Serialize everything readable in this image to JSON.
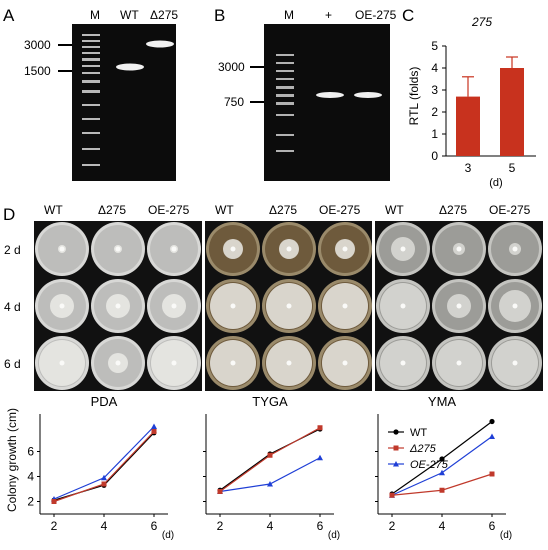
{
  "panel_a": {
    "label": "A",
    "lanes": [
      "M",
      "WT",
      "Δ275"
    ],
    "markers": [
      "3000",
      "1500"
    ]
  },
  "panel_b": {
    "label": "B",
    "lanes": [
      "M",
      "+",
      "OE-275"
    ],
    "markers": [
      "3000",
      "750"
    ]
  },
  "panel_c": {
    "label": "C",
    "chart_data": {
      "type": "bar",
      "title": "275",
      "categories": [
        "3",
        "5"
      ],
      "values": [
        2.7,
        4.0
      ],
      "errors": [
        0.9,
        0.5
      ],
      "ylabel": "RTL (folds)",
      "xlabel": "(d)",
      "ylim": [
        0,
        5
      ],
      "yticks": [
        "0",
        "1",
        "2",
        "3",
        "4",
        "5"
      ],
      "color": "#c8321e"
    }
  },
  "panel_d": {
    "label": "D",
    "strains": [
      "WT",
      "Δ275",
      "OE-275"
    ],
    "days": [
      "2 d",
      "4 d",
      "6 d"
    ],
    "media": [
      "PDA",
      "TYGA",
      "YMA"
    ]
  },
  "growth_charts": {
    "ylabel": "Colony growth (cm)",
    "xticks": [
      "2",
      "4",
      "6"
    ],
    "xunit": "(d)",
    "yticks": [
      "2",
      "4",
      "6"
    ],
    "legend": [
      "WT",
      "Δ275",
      "OE-275"
    ],
    "colors": {
      "WT": "#000000",
      "d275": "#c0392b",
      "OE": "#1f3fd6"
    },
    "chart_data": [
      {
        "type": "line",
        "title": "PDA",
        "x": [
          2,
          4,
          6
        ],
        "ylim": [
          1,
          9
        ],
        "series": [
          {
            "name": "WT",
            "values": [
              2.1,
              3.3,
              7.5
            ]
          },
          {
            "name": "Δ275",
            "values": [
              2.0,
              3.4,
              7.6
            ]
          },
          {
            "name": "OE-275",
            "values": [
              2.2,
              3.9,
              8.0
            ]
          }
        ]
      },
      {
        "type": "line",
        "title": "TYGA",
        "x": [
          2,
          4,
          6
        ],
        "ylim": [
          1,
          9
        ],
        "series": [
          {
            "name": "WT",
            "values": [
              2.9,
              5.8,
              7.8
            ]
          },
          {
            "name": "Δ275",
            "values": [
              2.8,
              5.7,
              7.9
            ]
          },
          {
            "name": "OE-275",
            "values": [
              2.8,
              3.4,
              5.5
            ]
          }
        ]
      },
      {
        "type": "line",
        "title": "YMA",
        "x": [
          2,
          4,
          6
        ],
        "ylim": [
          1,
          9
        ],
        "legend_position": "top-left",
        "series": [
          {
            "name": "WT",
            "values": [
              2.6,
              5.4,
              8.4
            ]
          },
          {
            "name": "Δ275",
            "values": [
              2.5,
              2.9,
              4.2
            ]
          },
          {
            "name": "OE-275",
            "values": [
              2.5,
              4.3,
              7.2
            ]
          }
        ]
      }
    ]
  }
}
